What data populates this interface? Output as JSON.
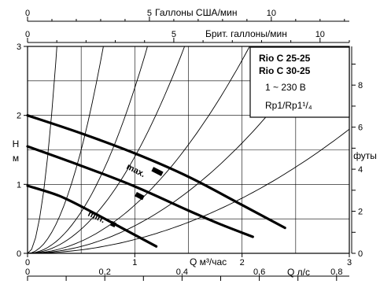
{
  "chart_data": {
    "type": "line",
    "axes": {
      "x_bottom": {
        "label": "Q м³/час",
        "ticks": [
          "0",
          "1",
          "2",
          "3"
        ],
        "range": [
          0,
          3
        ]
      },
      "x_bottom2": {
        "label": "Q л/с",
        "ticks": [
          "0",
          "0,2",
          "0,4",
          "0,6",
          "0,8"
        ],
        "range_ls": [
          0,
          0.833
        ]
      },
      "x_top1": {
        "label": "Галлоны США/мин",
        "ticks": [
          "0",
          "5",
          "10"
        ],
        "range": [
          0,
          13.2
        ]
      },
      "x_top2": {
        "label": "Брит. галлоны/мин",
        "ticks": [
          "0",
          "5",
          "10"
        ],
        "range": [
          0,
          11
        ]
      },
      "y_left": {
        "label_line1": "H",
        "label_line2": "м",
        "ticks": [
          "0",
          "1",
          "2",
          "3"
        ],
        "range": [
          0,
          3
        ]
      },
      "y_right": {
        "label": "футы",
        "ticks": [
          "0",
          "2",
          "4",
          "6",
          "8"
        ],
        "range": [
          0,
          9.84
        ]
      }
    },
    "grid": true,
    "legend_box": {
      "line1": "Rio C 25-25",
      "line2": "Rio C 30-25",
      "line3": "1 ~ 230 В",
      "line4": "Rp1/Rp1¹/₄"
    },
    "speed_labels": {
      "max": "max.",
      "min": "min."
    },
    "series": [
      {
        "name": "max.",
        "points": [
          [
            0,
            2.0
          ],
          [
            0.5,
            1.74
          ],
          [
            1.0,
            1.45
          ],
          [
            1.5,
            1.11
          ],
          [
            2.0,
            0.7
          ],
          [
            2.4,
            0.37
          ]
        ]
      },
      {
        "name": "",
        "points": [
          [
            0,
            1.55
          ],
          [
            0.5,
            1.27
          ],
          [
            1.0,
            0.97
          ],
          [
            1.5,
            0.62
          ],
          [
            1.8,
            0.42
          ],
          [
            2.1,
            0.24
          ]
        ]
      },
      {
        "name": "min.",
        "points": [
          [
            0,
            0.98
          ],
          [
            0.3,
            0.83
          ],
          [
            0.6,
            0.6
          ],
          [
            0.9,
            0.35
          ],
          [
            1.2,
            0.1
          ]
        ]
      }
    ],
    "system_curves_k": [
      40,
      6,
      2.4,
      1.4,
      0.7,
      0.4,
      0.2
    ]
  }
}
